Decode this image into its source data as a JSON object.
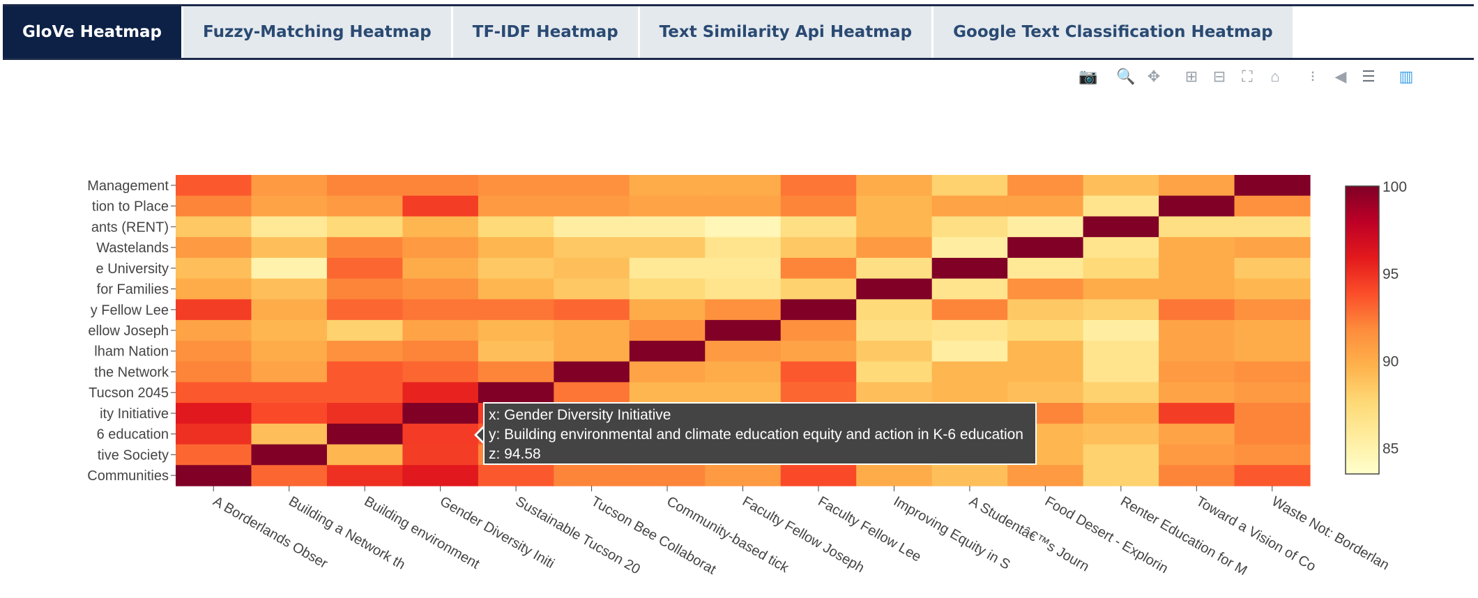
{
  "tabs": [
    {
      "label": "GloVe Heatmap",
      "active": true
    },
    {
      "label": "Fuzzy-Matching Heatmap"
    },
    {
      "label": "TF-IDF Heatmap"
    },
    {
      "label": "Text Similarity Api Heatmap"
    },
    {
      "label": "Google Text Classification Heatmap"
    }
  ],
  "modebar": [
    {
      "name": "camera-icon",
      "glyph": "📷"
    },
    {
      "name": "zoom-icon",
      "glyph": "🔍",
      "gap": true,
      "dark": true
    },
    {
      "name": "pan-icon",
      "glyph": "✥"
    },
    {
      "name": "zoom-in-icon",
      "glyph": "⊞",
      "gap": true
    },
    {
      "name": "zoom-out-icon",
      "glyph": "⊟"
    },
    {
      "name": "autoscale-icon",
      "glyph": "⛶"
    },
    {
      "name": "reset-axes-icon",
      "glyph": "⌂"
    },
    {
      "name": "spike-lines-icon",
      "glyph": "⁝",
      "gap": true
    },
    {
      "name": "hover-closest-icon",
      "glyph": "◀"
    },
    {
      "name": "hover-compare-icon",
      "glyph": "☰",
      "dark": true
    },
    {
      "name": "plotly-logo-icon",
      "glyph": "▥",
      "gap": true,
      "blue": true
    }
  ],
  "chart_data": {
    "type": "heatmap",
    "x_tick_labels": [
      "A Borderlands Obser",
      "Building a Network th",
      "Building environment",
      "Gender Diversity Initi",
      "Sustainable Tucson 20",
      "Tucson Bee Collaborat",
      "Community-based tick",
      "Faculty Fellow Joseph",
      "Faculty Fellow Lee",
      "Improving Equity in S",
      "A Studentâ€™s Journ",
      "Food Desert - Explorin",
      "Renter Education for M",
      "Toward a Vision of Co",
      "Waste Not: Borderlan"
    ],
    "y_tick_labels": [
      "Management",
      "tion to Place",
      "ants (RENT)",
      "Wastelands",
      "e University",
      "for Families",
      "y Fellow Lee",
      "ellow Joseph",
      "lham Nation",
      "the Network",
      "Tucson 2045",
      "ity Initiative",
      "6 education",
      "tive Society",
      "Communities"
    ],
    "z": [
      [
        93.5,
        91,
        92,
        92,
        91.5,
        91.5,
        90,
        90,
        92.5,
        90,
        88,
        91.5,
        89,
        90.5,
        100
      ],
      [
        92,
        90.5,
        91,
        94.5,
        91,
        91,
        90.5,
        90.5,
        92,
        89.5,
        90.5,
        90.5,
        86.5,
        100,
        91.5
      ],
      [
        88.5,
        86,
        87.5,
        89.5,
        87.5,
        85.5,
        85.5,
        84.5,
        87,
        89.5,
        87,
        85.5,
        100,
        87,
        87
      ],
      [
        91,
        89,
        92,
        91,
        89.5,
        88.5,
        88.5,
        86.5,
        88.5,
        91,
        85.5,
        100,
        86.5,
        90,
        90.5
      ],
      [
        89,
        85,
        93,
        90,
        88.5,
        89,
        86,
        86,
        92,
        87,
        100,
        86,
        87.5,
        90,
        88.5
      ],
      [
        90,
        89,
        92,
        91.5,
        89.5,
        88.5,
        87.5,
        86.5,
        88,
        100,
        86.5,
        91.5,
        90,
        90,
        89.5
      ],
      [
        94.5,
        90,
        93,
        92.5,
        92.5,
        93,
        90,
        91.5,
        100,
        87.5,
        92,
        88.5,
        88,
        92.5,
        91.5
      ],
      [
        90.5,
        89.5,
        88,
        90.5,
        89.5,
        90,
        91.5,
        100,
        91.5,
        87,
        86.5,
        87.5,
        85.5,
        90.5,
        90
      ],
      [
        91.5,
        90,
        91.5,
        92,
        89,
        90,
        100,
        91,
        90.5,
        88.5,
        85.5,
        89.5,
        86.5,
        90.5,
        90
      ],
      [
        92,
        90.5,
        93.5,
        93,
        92,
        100,
        90.5,
        90,
        93.5,
        87.5,
        89.5,
        89.5,
        86.5,
        91,
        91.5
      ],
      [
        93.5,
        93.5,
        93.5,
        95.5,
        100,
        92.5,
        89.5,
        89.5,
        93,
        89,
        89.5,
        89,
        88,
        90.5,
        91
      ],
      [
        96,
        94,
        95,
        100,
        94.58,
        93,
        90.5,
        90.5,
        92.5,
        90,
        91,
        92,
        90,
        94.5,
        92
      ],
      [
        95,
        89,
        100,
        94.58,
        93.5,
        92.5,
        90.5,
        90.5,
        92,
        89,
        88.5,
        89.5,
        89,
        90.5,
        92
      ],
      [
        93,
        100,
        89.5,
        94.5,
        92,
        91.5,
        90,
        90,
        91.5,
        89,
        88,
        89.5,
        88,
        91,
        91.5
      ],
      [
        100,
        93,
        95,
        96,
        93.5,
        92,
        92,
        91,
        94,
        90,
        89,
        91,
        88,
        92,
        93.5
      ]
    ],
    "zmin": 83.5,
    "zmax": 100,
    "colorscale": "YlOrRd",
    "colorbar_ticks": [
      100,
      95,
      90,
      85
    ],
    "tooltip": {
      "x": "x: Gender Diversity Initiative",
      "y": "y: Building environmental and climate education equity and action in K-6 education",
      "z": "z: 94.58"
    }
  }
}
